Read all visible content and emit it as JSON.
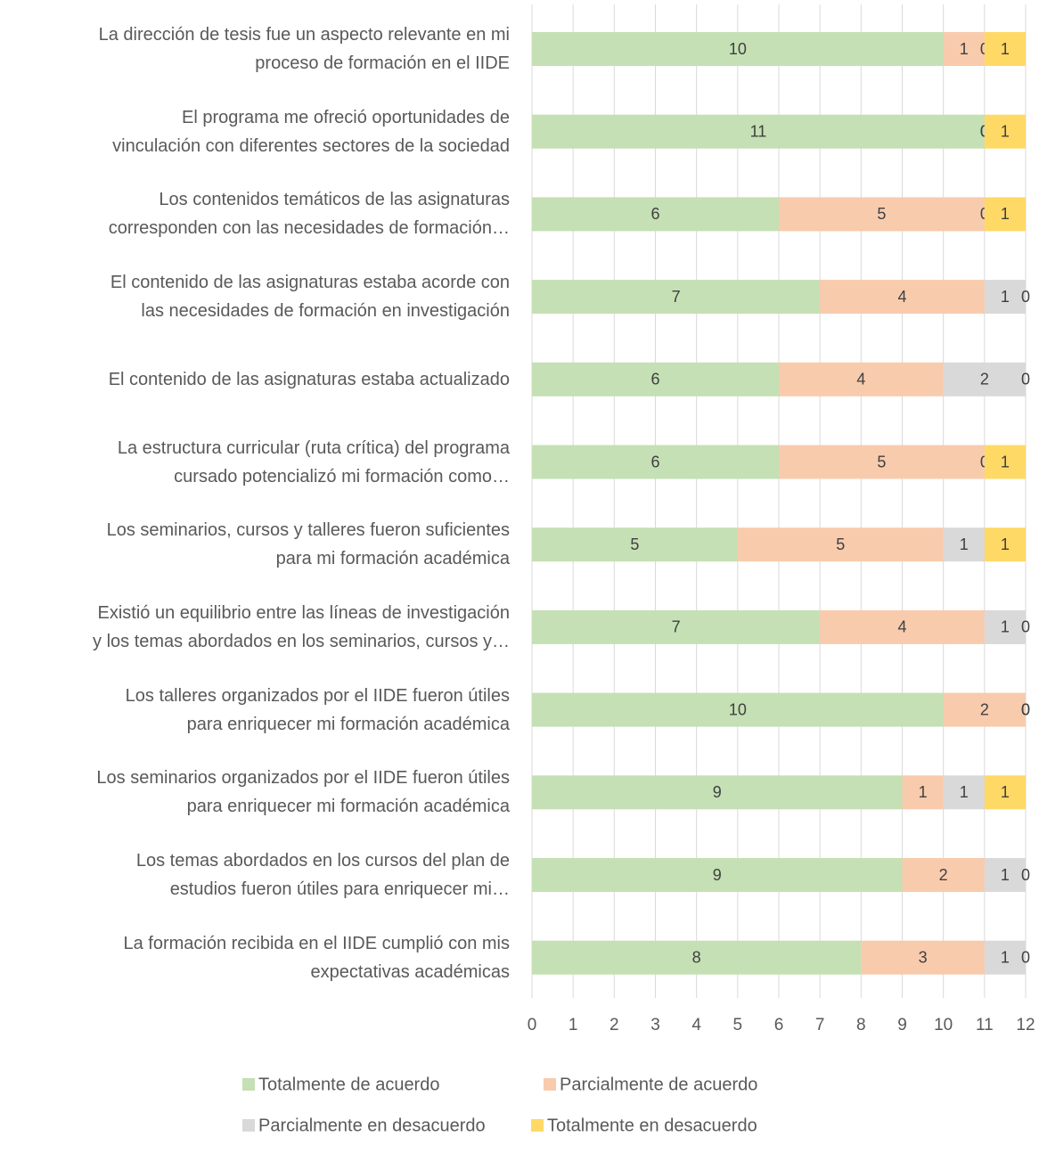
{
  "chart_data": {
    "type": "stacked_barh",
    "categories": [
      "La dirección de tesis fue un aspecto relevante en mi\nproceso de formación en el IIDE",
      "El programa me ofreció oportunidades de\nvinculación con diferentes sectores de la sociedad",
      "Los contenidos temáticos de las asignaturas\ncorresponden con las necesidades de formación…",
      "El contenido de las asignaturas estaba acorde con\nlas necesidades de formación en investigación",
      "El contenido de las asignaturas estaba actualizado",
      "La estructura curricular (ruta crítica) del programa\ncursado potencializó mi formación como…",
      "Los seminarios, cursos y talleres fueron suficientes\npara mi formación académica",
      "Existió un equilibrio entre las líneas de investigación\ny los temas abordados en los seminarios, cursos y…",
      "Los talleres organizados por el IIDE fueron útiles\npara enriquecer mi formación académica",
      "Los seminarios organizados por el IIDE fueron útiles\npara enriquecer mi formación académica",
      "Los temas abordados en los cursos del plan de\nestudios fueron útiles para enriquecer mi…",
      "La formación recibida en el IIDE cumplió con mis\nexpectativas académicas"
    ],
    "series": [
      {
        "name": "Totalmente de acuerdo",
        "color": "#c5e0b4",
        "values": [
          10,
          11,
          6,
          7,
          6,
          6,
          5,
          7,
          10,
          9,
          9,
          8
        ]
      },
      {
        "name": "Parcialmente de acuerdo",
        "color": "#f8cbad",
        "values": [
          1,
          0,
          5,
          4,
          4,
          5,
          5,
          4,
          2,
          1,
          2,
          3
        ]
      },
      {
        "name": "Parcialmente en desacuerdo",
        "color": "#d9d9d9",
        "values": [
          0,
          0,
          0,
          1,
          2,
          0,
          1,
          1,
          0,
          1,
          1,
          1
        ]
      },
      {
        "name": "Totalmente en desacuerdo",
        "color": "#ffd966",
        "values": [
          1,
          1,
          1,
          0,
          0,
          1,
          1,
          0,
          0,
          1,
          0,
          0
        ]
      }
    ],
    "xlim": [
      0,
      12
    ],
    "xticks": [
      0,
      1,
      2,
      3,
      4,
      5,
      6,
      7,
      8,
      9,
      10,
      11,
      12
    ],
    "grid": true,
    "legend": "bottom"
  }
}
